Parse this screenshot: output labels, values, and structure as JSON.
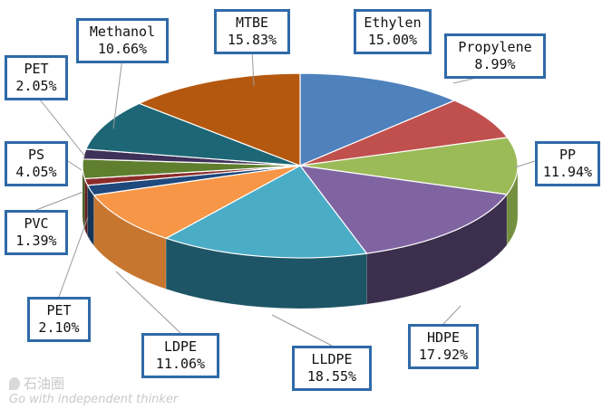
{
  "chart_data": {
    "type": "pie",
    "slices": [
      {
        "label": "Ethylen",
        "display": "15.00%",
        "value": 15.0,
        "color": "#4f81bd",
        "side": "#3a6594"
      },
      {
        "label": "Propylene",
        "display": "8.99%",
        "value": 8.99,
        "color": "#c0504d",
        "side": "#933c39"
      },
      {
        "label": "PP",
        "display": "11.94%",
        "value": 11.94,
        "color": "#9bbb59",
        "side": "#748f40"
      },
      {
        "label": "HDPE",
        "display": "17.92%",
        "value": 17.92,
        "color": "#8064a2",
        "side": "#3b2f4d"
      },
      {
        "label": "LLDPE",
        "display": "18.55%",
        "value": 18.55,
        "color": "#4bacc6",
        "side": "#1e5566"
      },
      {
        "label": "LDPE",
        "display": "11.06%",
        "value": 11.06,
        "color": "#f79646",
        "side": "#c7762f"
      },
      {
        "label": "PET",
        "display": "2.10%",
        "value": 2.1,
        "color": "#1f497d",
        "side": "#163556"
      },
      {
        "label": "PVC",
        "display": "1.39%",
        "value": 1.39,
        "color": "#8b2c2a",
        "side": "#611e1d"
      },
      {
        "label": "PS",
        "display": "4.05%",
        "value": 4.05,
        "color": "#5f7f2e",
        "side": "#435a20"
      },
      {
        "label": "PET",
        "display": "2.05%",
        "value": 2.05,
        "color": "#3e3159",
        "side": "#2b223e"
      },
      {
        "label": "Methanol",
        "display": "10.66%",
        "value": 10.66,
        "color": "#1d6675",
        "side": "#134650"
      },
      {
        "label": "MTBE",
        "display": "15.83%",
        "value": 15.83,
        "color": "#b5580f",
        "side": "#84400b"
      }
    ]
  },
  "watermark": {
    "logo_text": "石油圈",
    "tagline": "Go with independent thinker"
  }
}
